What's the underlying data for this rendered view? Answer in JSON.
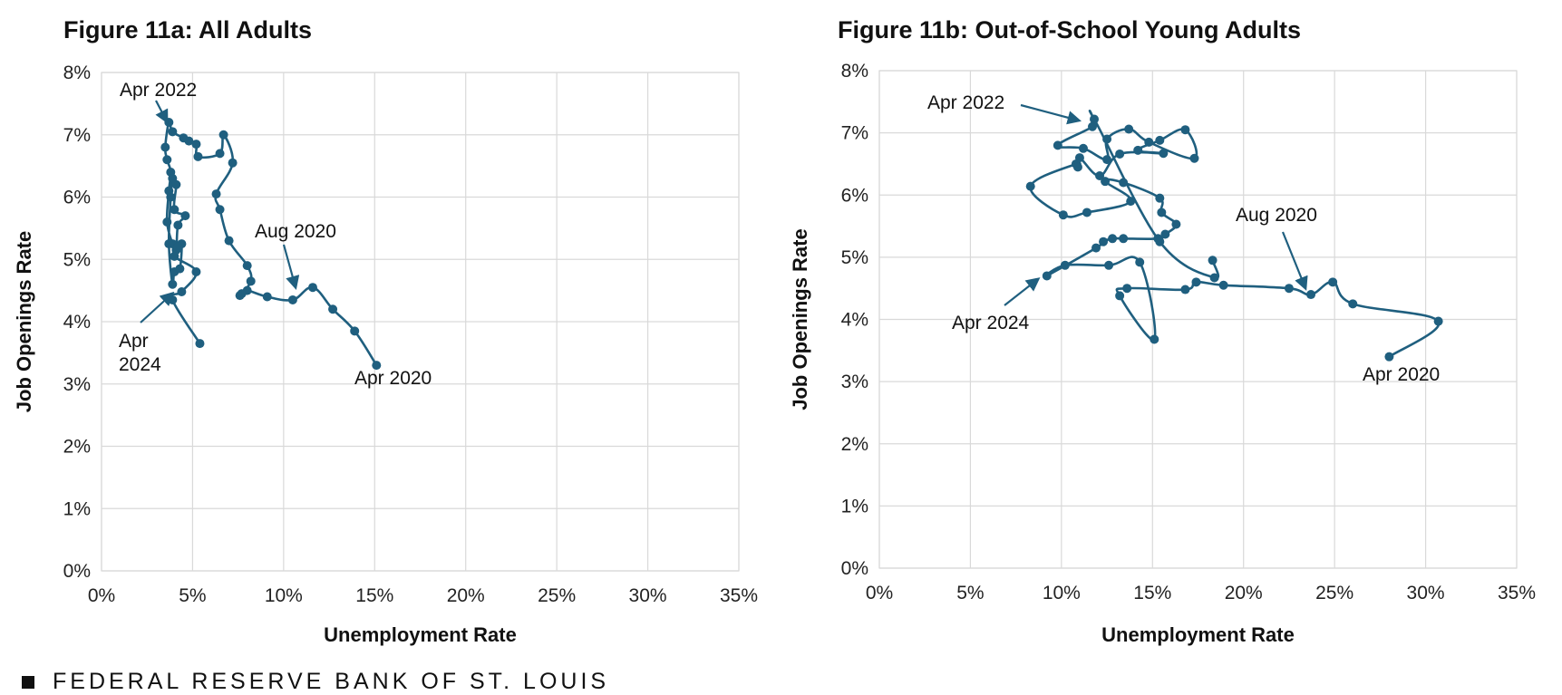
{
  "footer": {
    "text": "FEDERAL RESERVE BANK OF ST. LOUIS"
  },
  "colors": {
    "series": "#1f5f7f",
    "grid": "#d9d9d9"
  },
  "chart_data": [
    {
      "type": "scatter",
      "title": "Figure 11a: All Adults",
      "xlabel": "Unemployment Rate",
      "ylabel": "Job Openings Rate",
      "xlim": [
        0,
        35
      ],
      "ylim": [
        0,
        8
      ],
      "x_ticks": [
        "0%",
        "5%",
        "10%",
        "15%",
        "20%",
        "25%",
        "30%",
        "35%"
      ],
      "y_ticks": [
        "0%",
        "1%",
        "2%",
        "3%",
        "4%",
        "5%",
        "6%",
        "7%",
        "8%"
      ],
      "grid": true,
      "connected": true,
      "series": [
        {
          "points": [
            [
              15.1,
              3.3
            ],
            [
              13.9,
              3.85
            ],
            [
              12.7,
              4.2
            ],
            [
              11.6,
              4.55
            ],
            [
              10.5,
              4.35
            ],
            [
              9.1,
              4.4
            ],
            [
              8.0,
              4.5
            ],
            [
              7.7,
              4.45
            ],
            [
              7.6,
              4.42
            ],
            [
              8.2,
              4.65
            ],
            [
              8.0,
              4.9
            ],
            [
              7.0,
              5.3
            ],
            [
              6.5,
              5.8
            ],
            [
              6.3,
              6.05
            ],
            [
              7.2,
              6.55
            ],
            [
              6.7,
              7.0
            ],
            [
              6.5,
              6.7
            ],
            [
              5.3,
              6.65
            ],
            [
              5.2,
              6.85
            ],
            [
              4.8,
              6.9
            ],
            [
              4.5,
              6.95
            ],
            [
              3.9,
              7.05
            ],
            [
              3.7,
              7.2
            ],
            [
              3.5,
              6.8
            ],
            [
              3.6,
              6.6
            ],
            [
              3.8,
              6.4
            ],
            [
              3.7,
              6.1
            ],
            [
              3.6,
              5.6
            ],
            [
              3.9,
              5.25
            ],
            [
              4.1,
              5.15
            ],
            [
              4.2,
              5.55
            ],
            [
              4.6,
              5.7
            ],
            [
              4.0,
              5.8
            ],
            [
              4.1,
              6.2
            ],
            [
              3.9,
              6.3
            ],
            [
              3.8,
              6.0
            ],
            [
              3.7,
              5.25
            ],
            [
              3.9,
              4.6
            ],
            [
              4.0,
              4.8
            ],
            [
              4.3,
              4.85
            ],
            [
              4.4,
              5.25
            ],
            [
              4.2,
              5.2
            ],
            [
              4.0,
              5.05
            ],
            [
              5.2,
              4.8
            ],
            [
              4.4,
              4.48
            ],
            [
              3.9,
              4.35
            ],
            [
              5.4,
              3.65
            ]
          ]
        }
      ],
      "annotations": [
        {
          "text": "Apr 2022",
          "x": 3.7,
          "y": 7.2
        },
        {
          "text": "Aug 2020",
          "x": 10.5,
          "y": 4.35
        },
        {
          "text": "Apr 2024",
          "x": 3.9,
          "y": 4.5
        },
        {
          "text": "Apr 2020",
          "x": 15.1,
          "y": 3.3
        }
      ]
    },
    {
      "type": "scatter",
      "title": "Figure 11b: Out-of-School Young Adults",
      "xlabel": "Unemployment Rate",
      "ylabel": "Job Openings Rate",
      "xlim": [
        0,
        35
      ],
      "ylim": [
        0,
        8
      ],
      "x_ticks": [
        "0%",
        "5%",
        "10%",
        "15%",
        "20%",
        "25%",
        "30%",
        "35%"
      ],
      "y_ticks": [
        "0%",
        "1%",
        "2%",
        "3%",
        "4%",
        "5%",
        "6%",
        "7%",
        "8%"
      ],
      "grid": true,
      "connected": true,
      "series": [
        {
          "points": [
            [
              28.0,
              3.4
            ],
            [
              30.7,
              3.97
            ],
            [
              26.0,
              4.25
            ],
            [
              24.9,
              4.6
            ],
            [
              23.7,
              4.4
            ],
            [
              22.5,
              4.5
            ],
            [
              18.9,
              4.55
            ],
            [
              17.4,
              4.6
            ],
            [
              16.8,
              4.48
            ],
            [
              13.6,
              4.5
            ],
            [
              13.2,
              4.38
            ],
            [
              15.1,
              3.68
            ],
            [
              14.3,
              4.92
            ],
            [
              12.6,
              4.87
            ],
            [
              10.2,
              4.87
            ],
            [
              9.2,
              4.7
            ],
            [
              11.9,
              5.15
            ],
            [
              12.3,
              5.25
            ],
            [
              12.8,
              5.3
            ],
            [
              13.4,
              5.3
            ],
            [
              15.3,
              5.3
            ],
            [
              15.7,
              5.37
            ],
            [
              16.3,
              5.53
            ],
            [
              15.5,
              5.72
            ],
            [
              15.4,
              5.95
            ],
            [
              13.4,
              6.2
            ],
            [
              12.4,
              6.22
            ],
            [
              13.8,
              5.9
            ],
            [
              11.4,
              5.72
            ],
            [
              10.1,
              5.68
            ],
            [
              8.3,
              6.14
            ],
            [
              10.8,
              6.5
            ],
            [
              10.9,
              6.45
            ],
            [
              11.0,
              6.6
            ],
            [
              12.1,
              6.31
            ],
            [
              13.2,
              6.66
            ],
            [
              15.6,
              6.67
            ],
            [
              14.2,
              6.72
            ],
            [
              15.4,
              6.88
            ],
            [
              16.8,
              7.05
            ],
            [
              17.3,
              6.59
            ],
            [
              14.8,
              6.85
            ],
            [
              13.7,
              7.06
            ],
            [
              12.5,
              6.9
            ],
            [
              12.5,
              6.57
            ],
            [
              11.2,
              6.75
            ],
            [
              9.8,
              6.8
            ],
            [
              11.7,
              7.1
            ],
            [
              11.8,
              7.22
            ],
            [
              15.4,
              5.25
            ],
            [
              18.4,
              4.67
            ],
            [
              18.3,
              4.95
            ]
          ]
        }
      ],
      "annotations": [
        {
          "text": "Apr 2022",
          "x": 11.8,
          "y": 7.22
        },
        {
          "text": "Aug 2020",
          "x": 23.7,
          "y": 4.4
        },
        {
          "text": "Apr 2024",
          "x": 9.2,
          "y": 4.7
        },
        {
          "text": "Apr 2020",
          "x": 28.0,
          "y": 3.4
        }
      ]
    }
  ]
}
